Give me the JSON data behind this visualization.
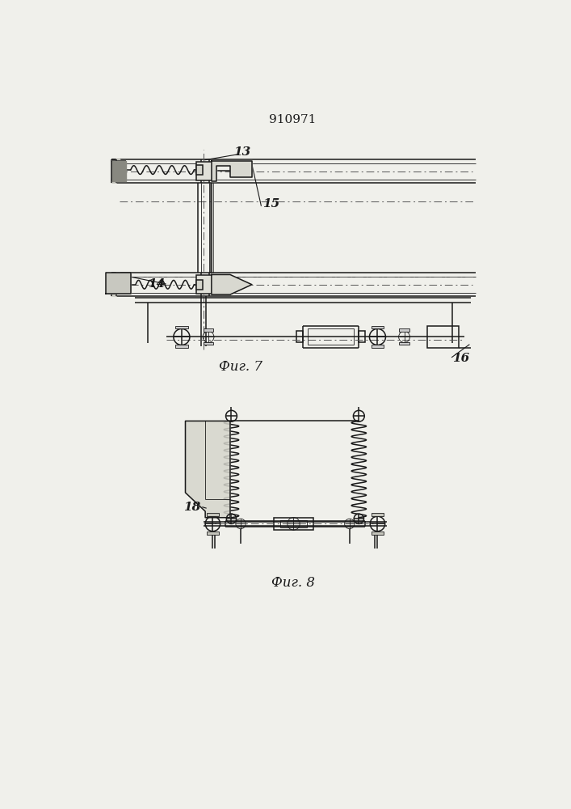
{
  "title": "910971",
  "fig7_label": "Фиг. 7",
  "fig8_label": "Фиг. 8",
  "label_13": "13",
  "label_14": "14",
  "label_15": "15",
  "label_16": "16",
  "label_18": "18",
  "line_color": "#1a1a1a",
  "bg_color": "#f0f0eb",
  "lw_main": 1.1,
  "lw_thin": 0.6
}
